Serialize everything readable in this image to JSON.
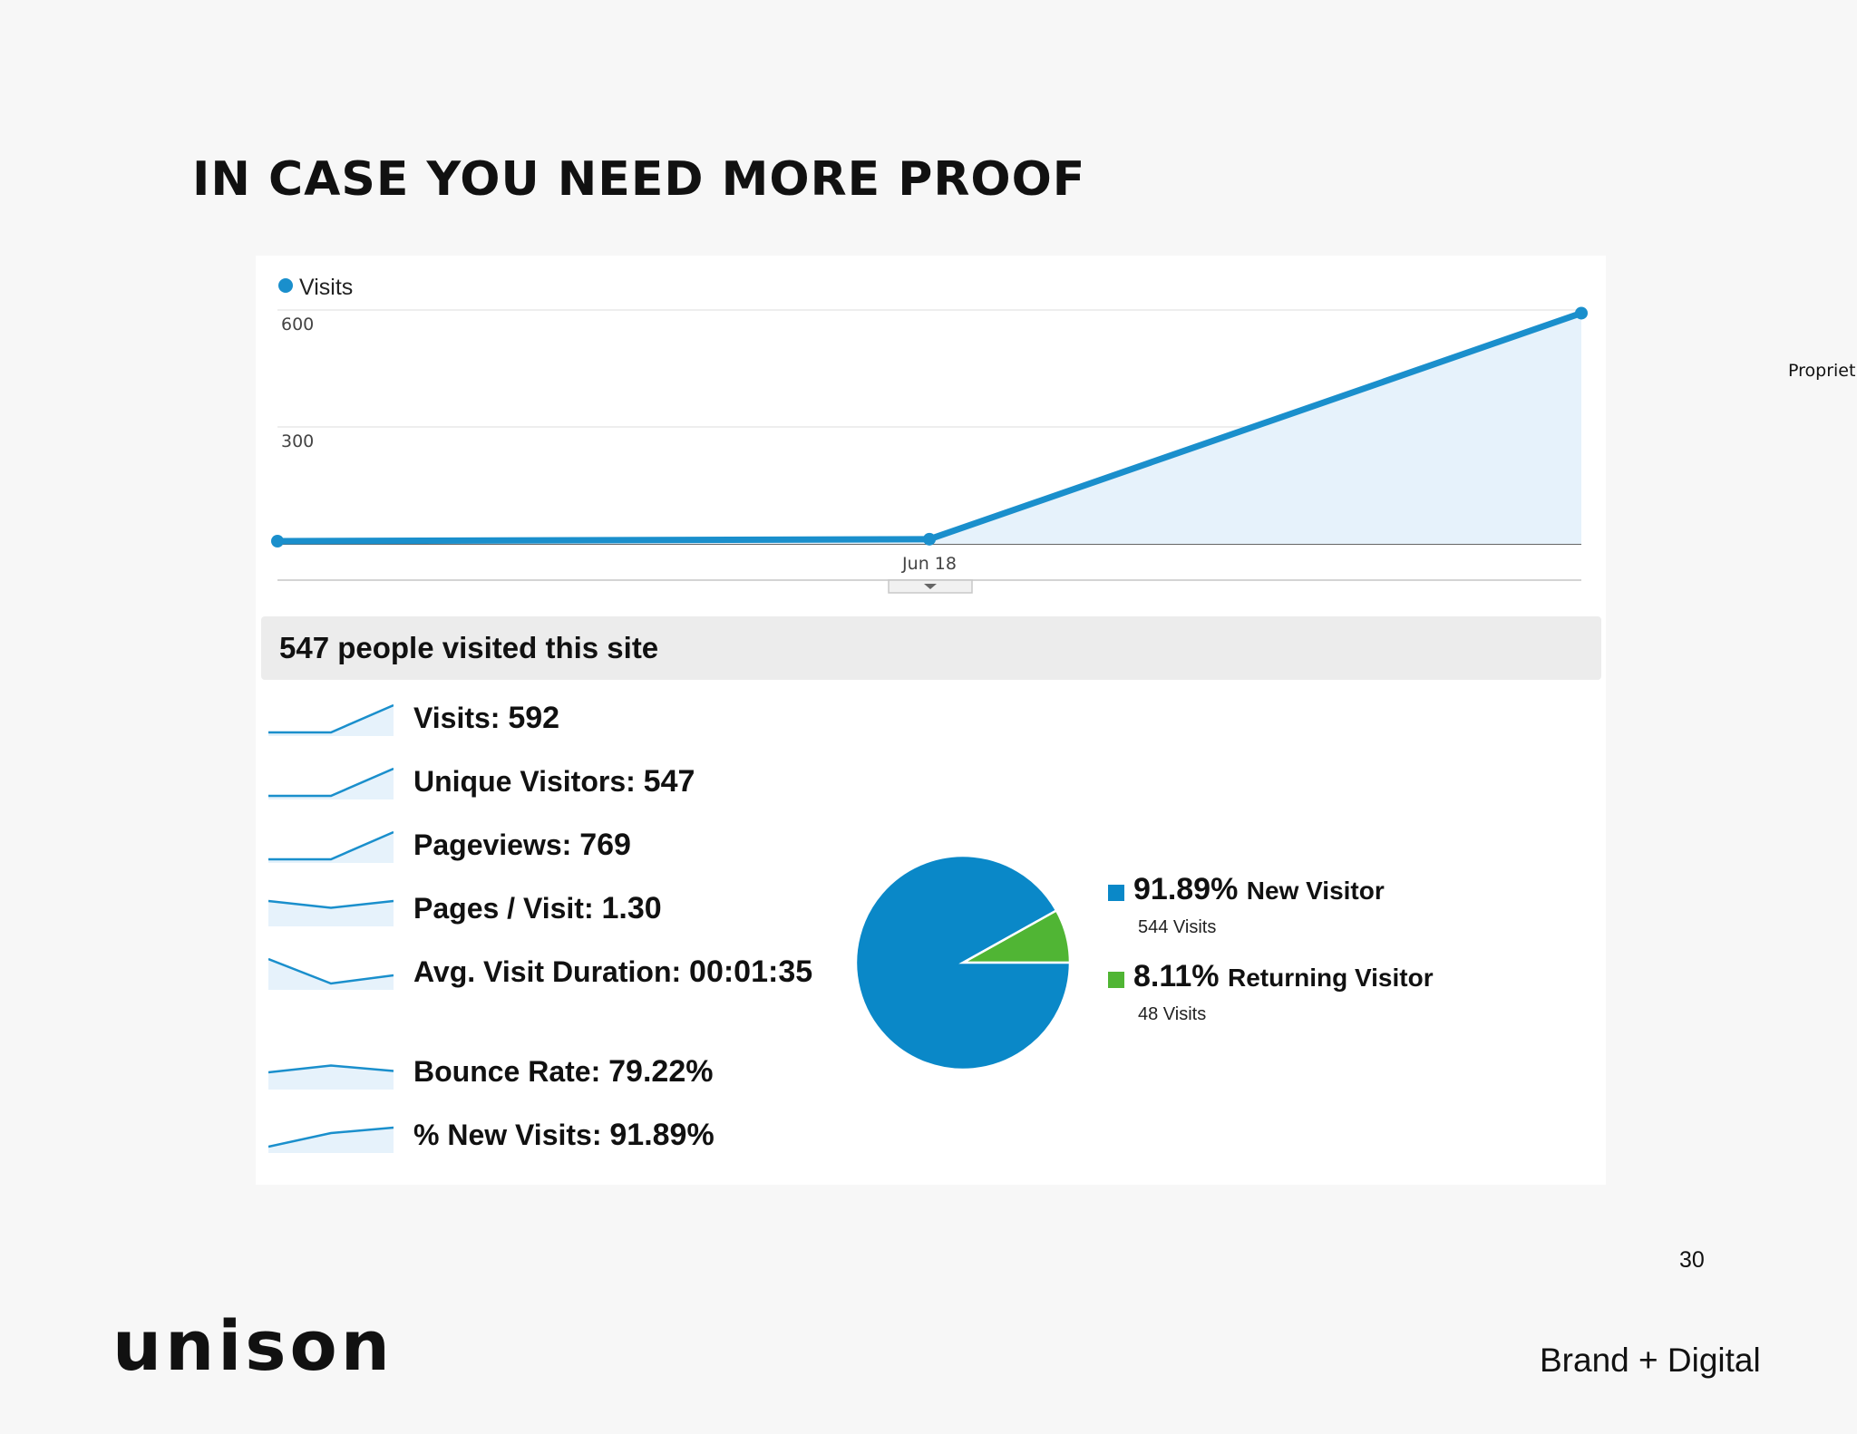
{
  "slide": {
    "title": "IN CASE YOU NEED MORE PROOF",
    "side_note": "Propriet",
    "page_number": "30",
    "logo": "unison",
    "tagline": "Brand + Digital"
  },
  "summary": {
    "text": "547 people visited this site"
  },
  "metrics": [
    {
      "label": "Visits: ",
      "value": "592",
      "trend": [
        0,
        0,
        1
      ]
    },
    {
      "label": "Unique Visitors: ",
      "value": "547",
      "trend": [
        0,
        0,
        1
      ]
    },
    {
      "label": "Pageviews: ",
      "value": "769",
      "trend": [
        0,
        0,
        1
      ]
    },
    {
      "label": "Pages / Visit: ",
      "value": "1.30",
      "trend": [
        0.8,
        0.55,
        0.8
      ]
    },
    {
      "label": "Avg. Visit Duration: ",
      "value": "00:01:35",
      "trend": [
        1,
        0.1,
        0.4
      ]
    },
    {
      "label": "Bounce Rate: ",
      "value": "79.22%",
      "trend": [
        0.5,
        0.75,
        0.55
      ]
    },
    {
      "label": "% New Visits: ",
      "value": "91.89%",
      "trend": [
        0.1,
        0.6,
        0.8
      ]
    }
  ],
  "colors": {
    "visits_line": "#1a8fcc",
    "visits_fill": "#e6f2fb",
    "new_visitor": "#0a88c8",
    "returning_visitor": "#50b534"
  },
  "chart_data": [
    {
      "type": "area",
      "legend": {
        "label": "Visits",
        "position": "top-left"
      },
      "series": [
        {
          "name": "Visits",
          "values": [
            7,
            12,
            592
          ]
        }
      ],
      "x": [
        0,
        1,
        2
      ],
      "x_tick_labels": [
        {
          "at": 1,
          "label": "Jun 18"
        }
      ],
      "y_ticks": [
        300,
        600
      ],
      "ylim": [
        0,
        600
      ],
      "grid": true
    },
    {
      "type": "pie",
      "slices": [
        {
          "label": "New Visitor",
          "percent": "91.89%",
          "value": 544,
          "sublabel": "544 Visits"
        },
        {
          "label": "Returning Visitor",
          "percent": "8.11%",
          "value": 48,
          "sublabel": "48 Visits"
        }
      ],
      "legend": {
        "position": "right"
      }
    }
  ]
}
